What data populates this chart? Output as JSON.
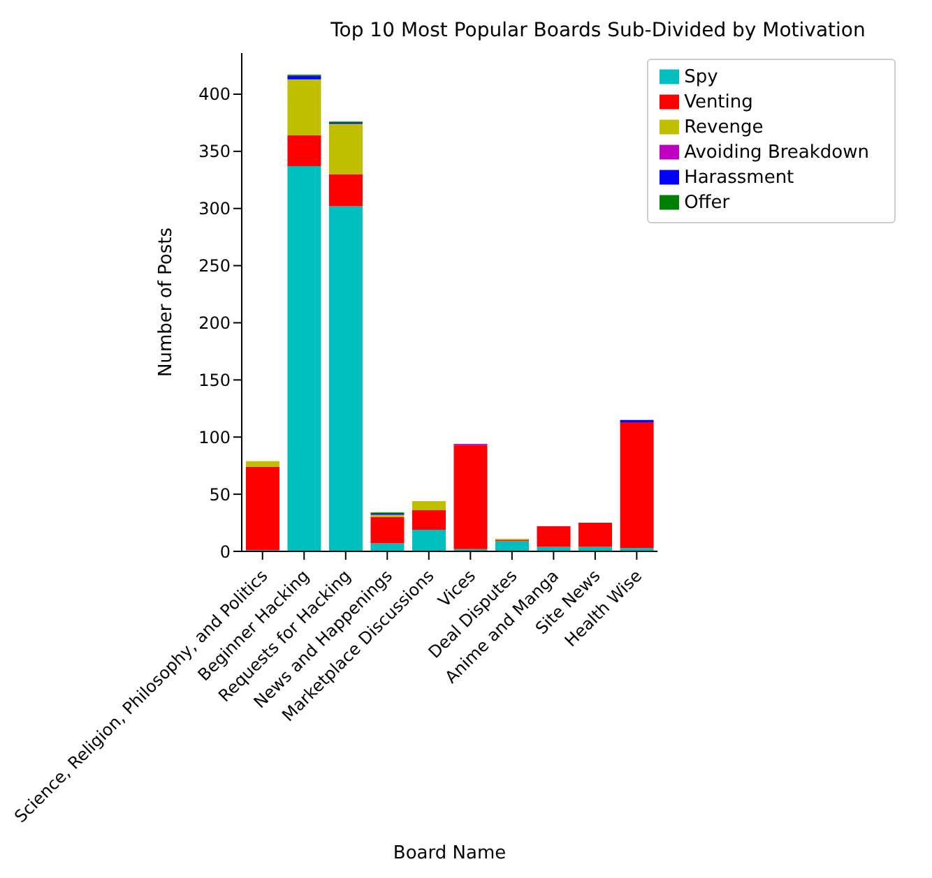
{
  "chart_data": {
    "type": "bar",
    "title": "Top 10 Most Popular Boards Sub-Divided by Motivation",
    "xlabel": "Board Name",
    "ylabel": "Number of Posts",
    "categories": [
      "Science, Religion, Philosophy, and Politics",
      "Beginner Hacking",
      "Requests for Hacking",
      "News and Happenings",
      "Marketplace Discussions",
      "Vices",
      "Deal Disputes",
      "Anime and Manga",
      "Site News",
      "Health Wise"
    ],
    "series": [
      {
        "name": "Spy",
        "color": "#00bfbf",
        "values": [
          1,
          337,
          302,
          7,
          19,
          2,
          9,
          4,
          4,
          3
        ]
      },
      {
        "name": "Venting",
        "color": "#ff0000",
        "values": [
          73,
          27,
          28,
          23,
          17,
          91,
          1,
          18,
          21,
          110
        ]
      },
      {
        "name": "Revenge",
        "color": "#bfbf00",
        "values": [
          5,
          49,
          44,
          2,
          8,
          0,
          1,
          0,
          0,
          0
        ]
      },
      {
        "name": "Avoiding Breakdown",
        "color": "#bf00bf",
        "values": [
          0,
          0,
          0,
          0,
          0,
          1,
          0,
          0,
          0,
          0
        ]
      },
      {
        "name": "Harassment",
        "color": "#0000ff",
        "values": [
          0,
          3,
          1,
          1,
          0,
          0,
          0,
          0,
          0,
          2
        ]
      },
      {
        "name": "Offer",
        "color": "#008000",
        "values": [
          0,
          1,
          1,
          1,
          0,
          0,
          0,
          0,
          0,
          0
        ]
      }
    ],
    "stacked": true,
    "ylim": [
      0,
      436
    ],
    "yticks": [
      0,
      50,
      100,
      150,
      200,
      250,
      300,
      350,
      400
    ],
    "grid": false,
    "legend": "top right"
  }
}
